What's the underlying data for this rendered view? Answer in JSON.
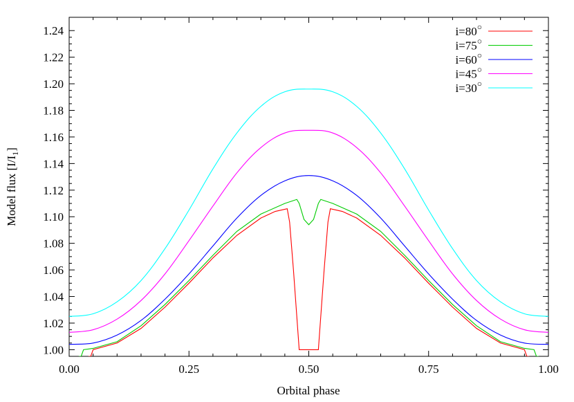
{
  "chart_data": {
    "type": "line",
    "xlabel": "Orbital phase",
    "ylabel": "Model flux [I/I",
    "ylabel_sub": "1",
    "ylabel_close": "]",
    "xlim": [
      0.0,
      1.0
    ],
    "ylim": [
      0.995,
      1.25
    ],
    "x_ticks": [
      0.0,
      0.25,
      0.5,
      0.75,
      1.0
    ],
    "x_tick_labels": [
      "0.00",
      "0.25",
      "0.50",
      "0.75",
      "1.00"
    ],
    "y_ticks": [
      1.0,
      1.02,
      1.04,
      1.06,
      1.08,
      1.1,
      1.12,
      1.14,
      1.16,
      1.18,
      1.2,
      1.22,
      1.24
    ],
    "y_tick_labels": [
      "1.00",
      "1.02",
      "1.04",
      "1.06",
      "1.08",
      "1.10",
      "1.12",
      "1.14",
      "1.16",
      "1.18",
      "1.20",
      "1.22",
      "1.24"
    ],
    "grid": false,
    "legend_position": "top-right",
    "series": [
      {
        "name": "i=80°",
        "label_text": "i=80",
        "color": "#ff0000",
        "x": [
          0.04,
          0.045,
          0.05,
          0.1,
          0.15,
          0.2,
          0.25,
          0.3,
          0.35,
          0.4,
          0.43,
          0.455,
          0.46,
          0.468,
          0.478,
          0.48,
          0.5,
          0.52,
          0.522,
          0.532,
          0.54,
          0.545,
          0.57,
          0.6,
          0.65,
          0.7,
          0.75,
          0.8,
          0.85,
          0.9,
          0.95,
          0.955,
          0.96
        ],
        "y": [
          0.995,
          0.995,
          1.0,
          1.005,
          1.016,
          1.032,
          1.05,
          1.069,
          1.086,
          1.099,
          1.104,
          1.106,
          1.096,
          1.06,
          1.01,
          1.0,
          1.0,
          1.0,
          1.01,
          1.06,
          1.096,
          1.106,
          1.104,
          1.099,
          1.086,
          1.069,
          1.05,
          1.032,
          1.016,
          1.005,
          1.0,
          0.995,
          0.995
        ]
      },
      {
        "name": "i=75°",
        "label_text": "i=75",
        "color": "#00cc00",
        "x": [
          0.02,
          0.025,
          0.03,
          0.05,
          0.1,
          0.15,
          0.2,
          0.25,
          0.3,
          0.35,
          0.4,
          0.45,
          0.475,
          0.48,
          0.49,
          0.5,
          0.51,
          0.52,
          0.525,
          0.55,
          0.6,
          0.65,
          0.7,
          0.75,
          0.8,
          0.85,
          0.9,
          0.95,
          0.97,
          0.975,
          0.98
        ],
        "y": [
          0.995,
          0.995,
          1.0,
          1.001,
          1.006,
          1.018,
          1.034,
          1.052,
          1.071,
          1.089,
          1.102,
          1.11,
          1.113,
          1.11,
          1.098,
          1.094,
          1.098,
          1.11,
          1.113,
          1.11,
          1.102,
          1.089,
          1.071,
          1.052,
          1.034,
          1.018,
          1.006,
          1.001,
          1.0,
          0.995,
          0.995
        ]
      },
      {
        "name": "i=60°",
        "label_text": "i=60",
        "color": "#0000ff",
        "x": [
          0.0,
          0.05,
          0.1,
          0.15,
          0.2,
          0.25,
          0.3,
          0.35,
          0.4,
          0.45,
          0.5,
          0.55,
          0.6,
          0.65,
          0.7,
          0.75,
          0.8,
          0.85,
          0.9,
          0.95,
          1.0
        ],
        "y": [
          1.004,
          1.005,
          1.011,
          1.022,
          1.038,
          1.057,
          1.078,
          1.099,
          1.116,
          1.127,
          1.131,
          1.127,
          1.116,
          1.099,
          1.078,
          1.057,
          1.038,
          1.022,
          1.011,
          1.005,
          1.004
        ]
      },
      {
        "name": "i=45°",
        "label_text": "i=45",
        "color": "#ff00ff",
        "x": [
          0.0,
          0.05,
          0.1,
          0.15,
          0.2,
          0.25,
          0.3,
          0.35,
          0.4,
          0.45,
          0.5,
          0.55,
          0.6,
          0.65,
          0.7,
          0.75,
          0.8,
          0.85,
          0.9,
          0.95,
          1.0
        ],
        "y": [
          1.013,
          1.015,
          1.023,
          1.037,
          1.057,
          1.082,
          1.108,
          1.133,
          1.152,
          1.163,
          1.165,
          1.163,
          1.152,
          1.133,
          1.108,
          1.082,
          1.057,
          1.037,
          1.023,
          1.015,
          1.013
        ]
      },
      {
        "name": "i=30°",
        "label_text": "i=30",
        "color": "#00ffff",
        "x": [
          0.0,
          0.05,
          0.1,
          0.15,
          0.2,
          0.25,
          0.3,
          0.35,
          0.4,
          0.45,
          0.5,
          0.55,
          0.6,
          0.65,
          0.7,
          0.75,
          0.8,
          0.85,
          0.9,
          0.95,
          1.0
        ],
        "y": [
          1.025,
          1.027,
          1.036,
          1.052,
          1.076,
          1.105,
          1.136,
          1.163,
          1.183,
          1.194,
          1.196,
          1.194,
          1.183,
          1.163,
          1.136,
          1.105,
          1.076,
          1.052,
          1.036,
          1.027,
          1.025
        ]
      }
    ]
  }
}
